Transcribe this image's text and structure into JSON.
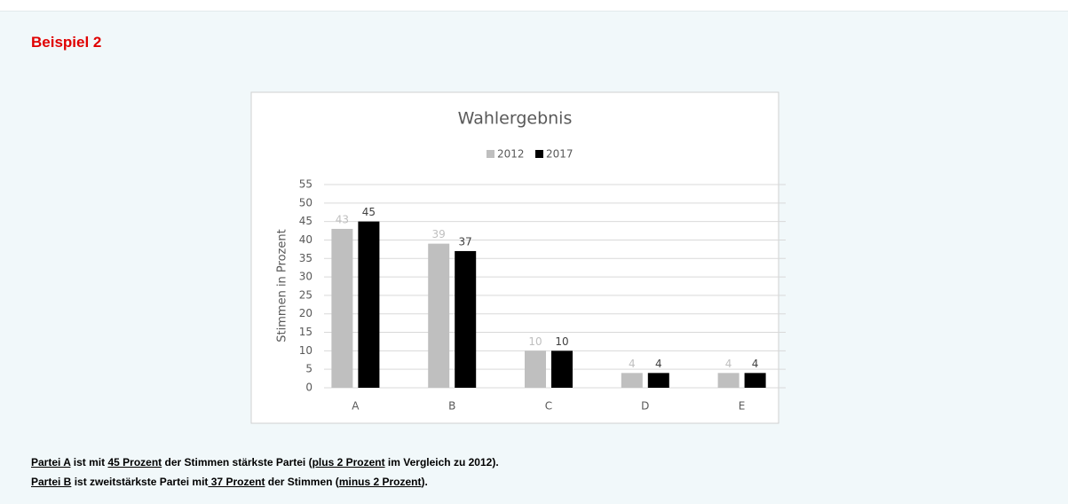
{
  "heading": "Beispiel 2",
  "chart_data": {
    "type": "bar",
    "title": "Wahlergebnis",
    "y_label": "Stimmen in Prozent",
    "categories": [
      "A",
      "B",
      "C",
      "D",
      "E"
    ],
    "series": [
      {
        "name": "2012",
        "color": "#bfbfbf",
        "values": [
          43,
          39,
          10,
          4,
          4
        ]
      },
      {
        "name": "2017",
        "color": "#000000",
        "values": [
          45,
          37,
          10,
          4,
          4
        ]
      }
    ],
    "ylim": [
      0,
      55
    ],
    "yticks": [
      0,
      5,
      10,
      15,
      20,
      25,
      30,
      35,
      40,
      45,
      50,
      55
    ],
    "grid": true,
    "legend": "top"
  },
  "paragraphs": [
    [
      {
        "text": "Partei A",
        "underline": true
      },
      {
        "text": " ist mit ",
        "underline": false
      },
      {
        "text": "45 Prozent",
        "underline": true
      },
      {
        "text": " der Stimmen stärkste Partei (",
        "underline": false
      },
      {
        "text": "plus 2 Prozent",
        "underline": true
      },
      {
        "text": " im Vergleich zu 2012).",
        "underline": false
      }
    ],
    [
      {
        "text": "Partei B",
        "underline": true
      },
      {
        "text": " ist zweitstärkste Partei mit",
        "underline": false
      },
      {
        "text": " 37 Prozent",
        "underline": true
      },
      {
        "text": " der Stimmen (",
        "underline": false
      },
      {
        "text": "minus 2 Prozent",
        "underline": true
      },
      {
        "text": ").",
        "underline": false
      }
    ]
  ]
}
